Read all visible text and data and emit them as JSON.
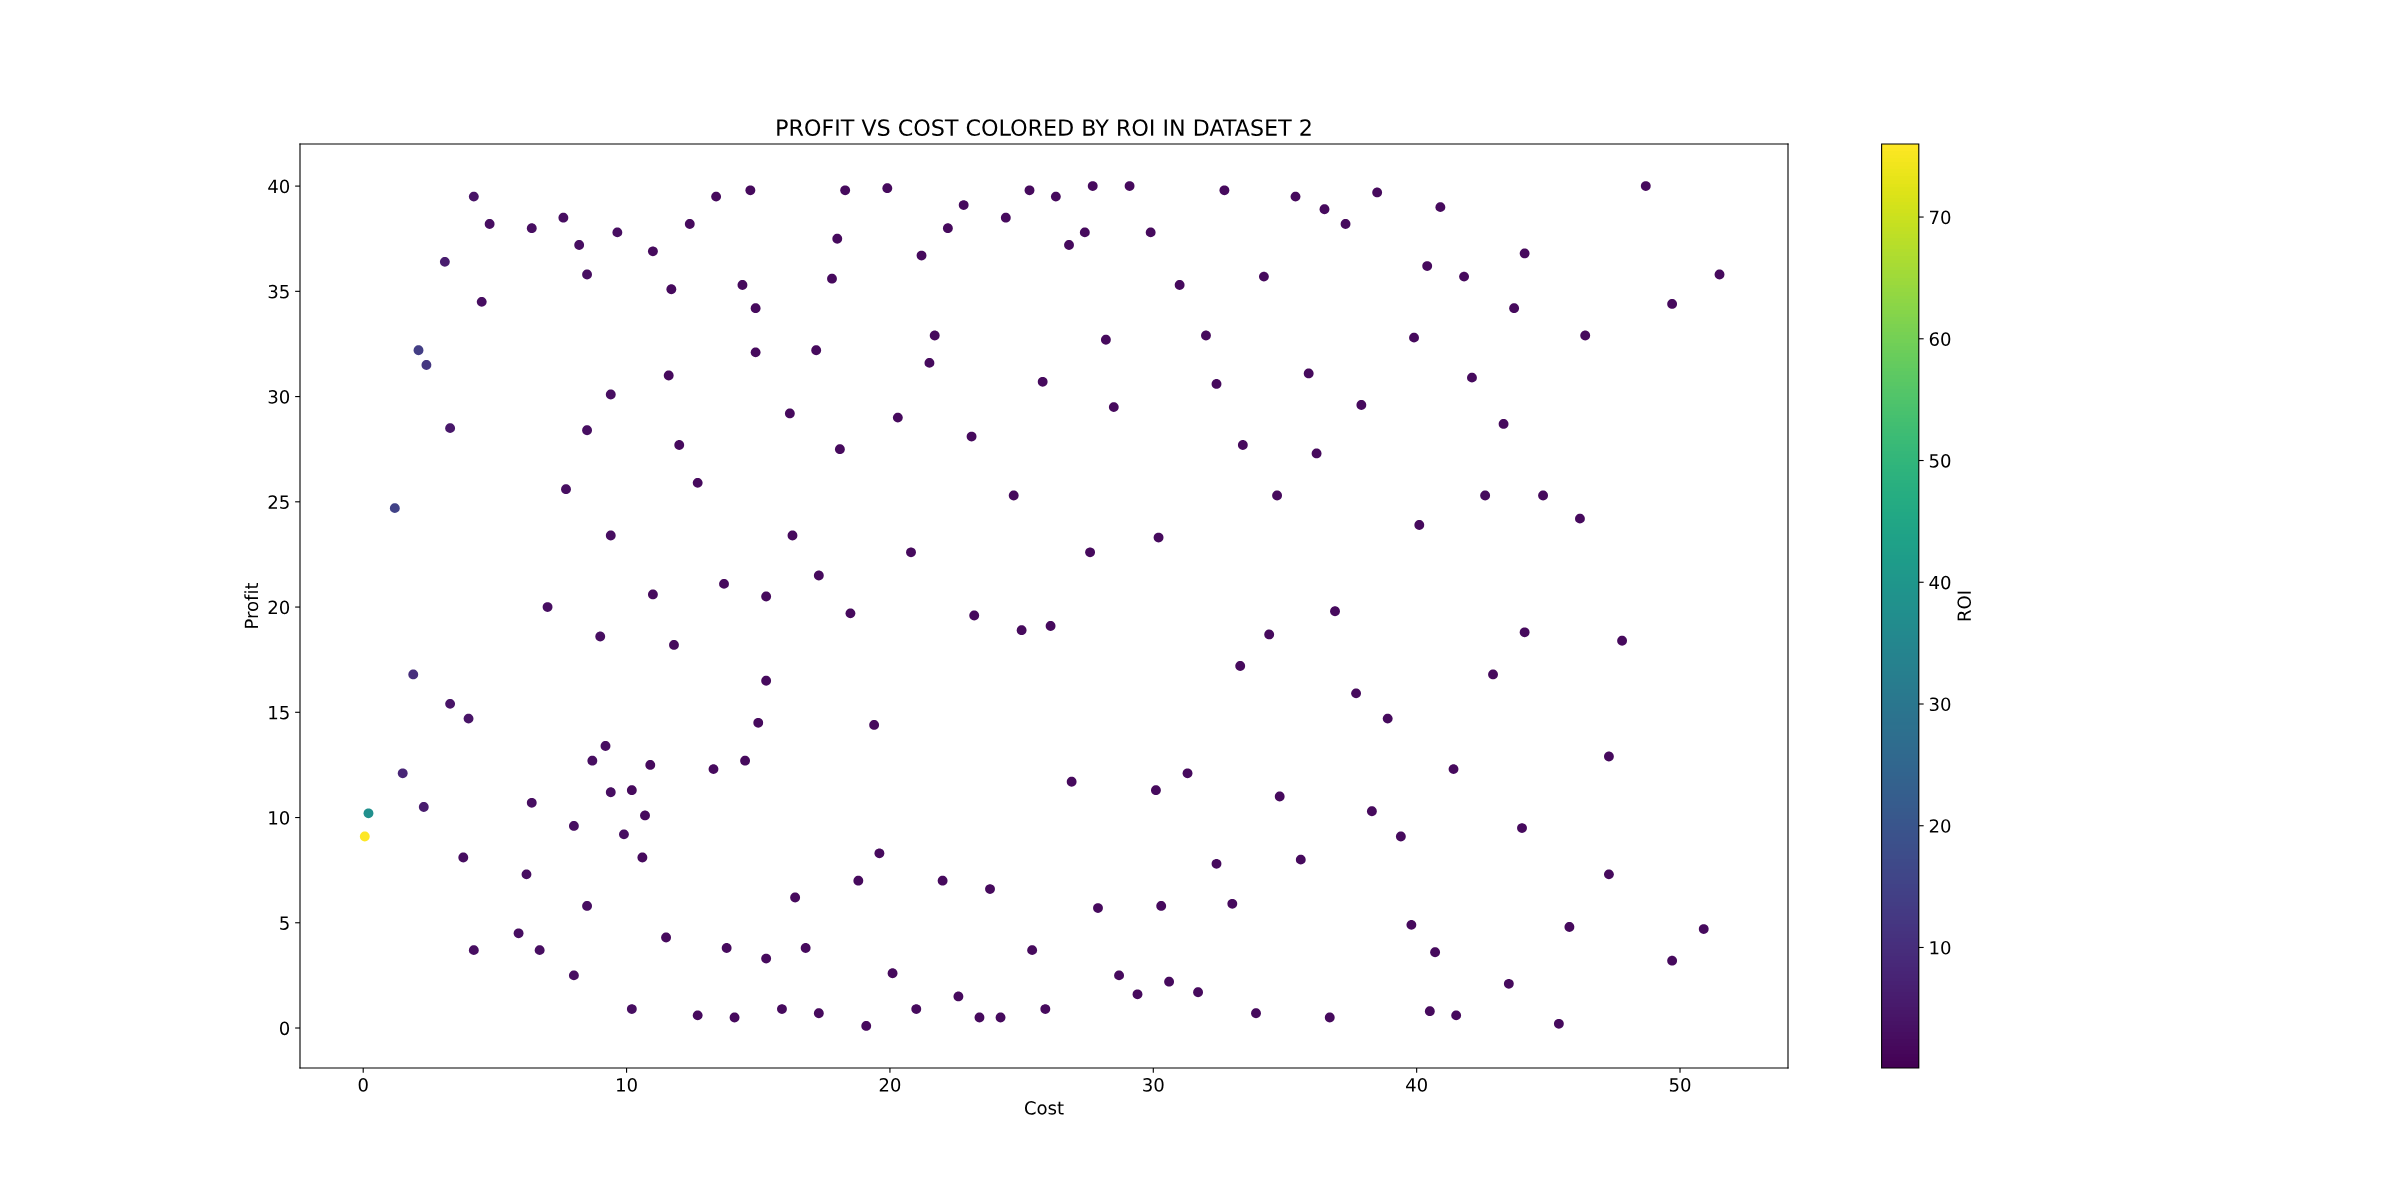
{
  "chart_data": {
    "type": "scatter",
    "title": "PROFIT VS COST COLORED BY ROI IN DATASET 2",
    "xlabel": "Cost",
    "ylabel": "Profit",
    "clabel": "ROI",
    "xlim": [
      -2.4,
      54.1
    ],
    "ylim": [
      -1.9,
      42
    ],
    "xticks": [
      0,
      10,
      20,
      30,
      40,
      50
    ],
    "yticks": [
      0,
      5,
      10,
      15,
      20,
      25,
      30,
      35,
      40
    ],
    "clim": [
      0.1,
      76
    ],
    "cticks": [
      10,
      20,
      30,
      40,
      50,
      60,
      70
    ],
    "marker": "circle",
    "grid": false,
    "legend": false,
    "series": [
      {
        "x": [
          0.06,
          0.2,
          1.2,
          2.1,
          2.4,
          1.9,
          1.5,
          2.3,
          3.1,
          3.3,
          3.3,
          4.0,
          4.2,
          4.5,
          3.8,
          4.2,
          4.8,
          6.4,
          6.4,
          6.2,
          5.9,
          6.7,
          7.0,
          7.7,
          7.6,
          8.2,
          8.5,
          8.5,
          8.0,
          8.0,
          8.7,
          8.5,
          9.4,
          9.4,
          9.0,
          9.65,
          9.2,
          9.4,
          9.9,
          10.2,
          10.2,
          10.6,
          10.7,
          11.0,
          11.0,
          10.9,
          11.5,
          11.7,
          11.6,
          11.8,
          12.0,
          12.4,
          12.7,
          12.7,
          13.3,
          13.4,
          13.7,
          13.8,
          14.1,
          14.4,
          14.5,
          14.7,
          14.9,
          15.0,
          14.9,
          15.3,
          15.3,
          15.3,
          15.9,
          16.2,
          16.3,
          16.4,
          16.8,
          17.2,
          17.3,
          17.3,
          17.8,
          18.1,
          18.0,
          18.3,
          18.5,
          18.8,
          19.1,
          19.4,
          19.6,
          19.9,
          20.1,
          20.3,
          20.8,
          21.0,
          21.2,
          21.5,
          21.7,
          22.0,
          22.2,
          22.6,
          22.8,
          23.1,
          23.2,
          23.4,
          23.8,
          24.2,
          24.4,
          24.7,
          25.0,
          25.3,
          25.4,
          25.8,
          25.9,
          26.1,
          26.3,
          26.8,
          26.9,
          27.4,
          27.6,
          27.7,
          27.9,
          28.2,
          28.5,
          28.7,
          29.1,
          29.4,
          29.9,
          30.2,
          30.1,
          30.3,
          30.6,
          31.0,
          31.3,
          31.7,
          32.0,
          32.4,
          32.4,
          32.7,
          33.0,
          33.3,
          33.4,
          33.9,
          34.2,
          34.4,
          34.7,
          34.8,
          35.4,
          35.6,
          35.9,
          36.2,
          36.5,
          36.7,
          36.9,
          37.3,
          37.7,
          37.9,
          38.3,
          38.5,
          38.9,
          39.4,
          39.8,
          39.9,
          40.1,
          40.5,
          40.4,
          40.7,
          40.9,
          41.4,
          41.5,
          41.8,
          42.1,
          42.6,
          42.9,
          43.3,
          43.5,
          43.7,
          44.0,
          44.1,
          44.1,
          44.8,
          45.4,
          45.8,
          46.2,
          46.4,
          47.3,
          47.3,
          47.8,
          48.7,
          49.7,
          49.7,
          50.9,
          51.5
        ],
        "values": [
          9.1,
          10.2,
          24.7,
          32.2,
          31.5,
          16.8,
          12.1,
          10.5,
          36.4,
          28.5,
          15.4,
          14.7,
          39.5,
          34.5,
          8.1,
          3.7,
          38.2,
          38.0,
          10.7,
          7.3,
          4.5,
          3.7,
          20.0,
          25.6,
          38.5,
          37.2,
          35.8,
          28.4,
          9.6,
          2.5,
          12.7,
          5.8,
          30.1,
          23.4,
          18.6,
          37.8,
          13.4,
          11.2,
          9.2,
          0.9,
          11.3,
          8.1,
          10.1,
          36.9,
          20.6,
          12.5,
          4.3,
          35.1,
          31.0,
          18.2,
          27.7,
          38.2,
          25.9,
          0.6,
          12.3,
          39.5,
          21.1,
          3.8,
          0.5,
          35.3,
          12.7,
          39.8,
          34.2,
          14.5,
          32.1,
          20.5,
          16.5,
          3.3,
          0.9,
          29.2,
          23.4,
          6.2,
          3.8,
          32.2,
          0.7,
          21.5,
          35.6,
          27.5,
          37.5,
          39.8,
          19.7,
          7.0,
          0.1,
          14.4,
          8.3,
          39.9,
          2.6,
          29.0,
          22.6,
          0.9,
          36.7,
          31.6,
          32.9,
          7.0,
          38.0,
          1.5,
          39.1,
          28.1,
          19.6,
          0.5,
          6.6,
          0.5,
          38.5,
          25.3,
          18.9,
          39.8,
          3.7,
          30.7,
          0.9,
          19.1,
          39.5,
          37.2,
          11.7,
          37.8,
          22.6,
          40.0,
          5.7,
          32.7,
          29.5,
          2.5,
          40.0,
          1.6,
          37.8,
          23.3,
          11.3,
          5.8,
          2.2,
          35.3,
          12.1,
          1.7,
          32.9,
          30.6,
          7.8,
          39.8,
          5.9,
          17.2,
          27.7,
          0.7,
          35.7,
          18.7,
          25.3,
          11.0,
          39.5,
          8.0,
          31.1,
          27.3,
          38.9,
          0.5,
          19.8,
          38.2,
          15.9,
          29.6,
          10.3,
          39.7,
          14.7,
          9.1,
          4.9,
          32.8,
          23.9,
          0.8,
          36.2,
          3.6,
          39.0,
          12.3,
          0.6,
          35.7,
          30.9,
          25.3,
          16.8,
          28.7,
          2.1,
          34.2,
          9.5,
          36.8,
          18.8,
          25.3,
          0.2,
          4.8,
          24.2,
          32.9,
          7.3,
          12.9,
          18.4,
          40.0,
          34.4,
          3.2,
          4.7,
          35.8
        ],
        "cvalues": [
          76,
          38,
          15,
          14,
          12,
          10,
          8,
          6,
          6,
          5,
          4,
          4,
          4,
          3,
          3,
          3,
          3,
          3,
          3,
          3,
          3,
          3,
          3,
          3,
          3,
          3,
          3,
          3,
          3,
          3,
          3,
          3,
          3,
          3,
          3,
          3,
          3,
          3,
          3,
          3,
          2,
          2,
          2,
          2,
          2,
          2,
          2,
          2,
          2,
          2,
          2,
          2,
          2,
          2,
          2,
          2,
          2,
          2,
          2,
          2,
          2,
          2,
          2,
          2,
          2,
          2,
          2,
          2,
          2,
          2,
          2,
          2,
          2,
          2,
          2,
          2,
          2,
          2,
          2,
          2,
          2,
          2,
          2,
          2,
          2,
          2,
          2,
          2,
          2,
          2,
          2,
          2,
          2,
          2,
          2,
          2,
          2,
          2,
          2,
          2,
          2,
          2,
          2,
          2,
          2,
          2,
          2,
          2,
          2,
          2,
          2,
          2,
          2,
          2,
          2,
          2,
          2,
          2,
          2,
          2,
          2,
          2,
          2,
          2,
          2,
          2,
          2,
          2,
          2,
          2,
          2,
          2,
          2,
          2,
          2,
          2,
          2,
          2,
          2,
          2,
          2,
          2,
          2,
          2,
          2,
          2,
          2,
          2,
          2,
          2,
          2,
          2,
          2,
          2,
          2,
          2,
          2,
          2,
          2,
          2,
          2,
          2,
          2,
          2,
          2,
          2,
          2,
          2,
          2,
          2,
          2,
          2,
          2,
          2,
          2,
          2,
          2,
          2,
          2,
          2,
          2,
          2,
          2,
          2,
          2,
          2,
          2,
          2
        ]
      }
    ]
  }
}
